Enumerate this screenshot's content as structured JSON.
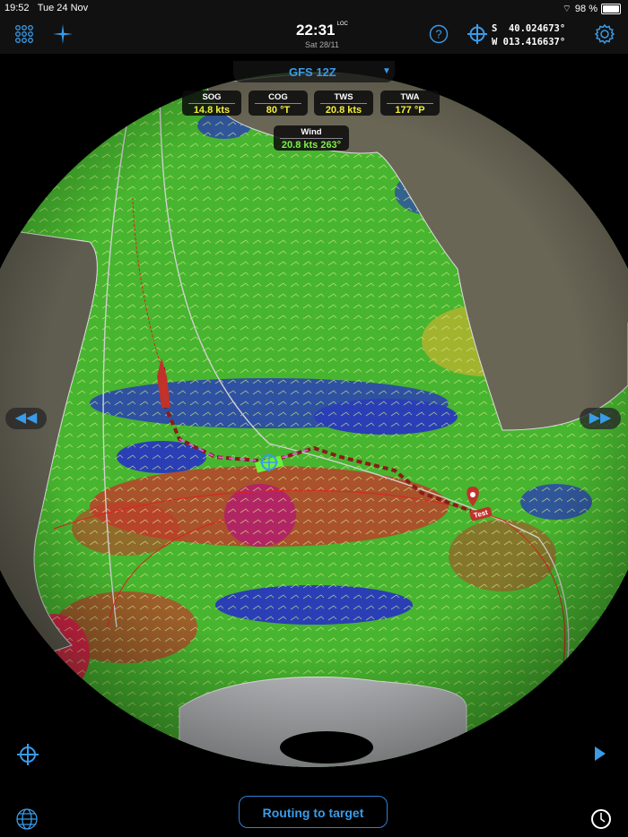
{
  "status_bar": {
    "time": "19:52",
    "date": "Tue 24 Nov",
    "battery": "98 %",
    "battery_level": 0.98
  },
  "toolbar": {
    "time": "22:31",
    "time_suffix": "LOC",
    "date": "Sat 28/11",
    "lat": "S  40.024673°",
    "lon": "W 013.416637°",
    "icons": [
      "grid-menu-icon",
      "compass-star-icon",
      "help-icon",
      "crosshair-icon",
      "gear-icon"
    ]
  },
  "weather_model": {
    "label": "GFS 12Z"
  },
  "instruments": [
    {
      "label": "SOG",
      "value": "14.8 kts"
    },
    {
      "label": "COG",
      "value": "80 °T"
    },
    {
      "label": "TWS",
      "value": "20.8 kts"
    },
    {
      "label": "TWA",
      "value": "177 °P"
    }
  ],
  "wind": {
    "label": "Wind",
    "value": "20.8 kts 263°"
  },
  "map": {
    "target_label": "Test",
    "colors": {
      "wind_low": "#2a3fb5",
      "wind_mid": "#3fb82e",
      "wind_high": "#c23a2a",
      "route": "#c0392b",
      "accent": "#3a9be8"
    }
  },
  "bottom": {
    "routing_button": "Routing to target"
  }
}
